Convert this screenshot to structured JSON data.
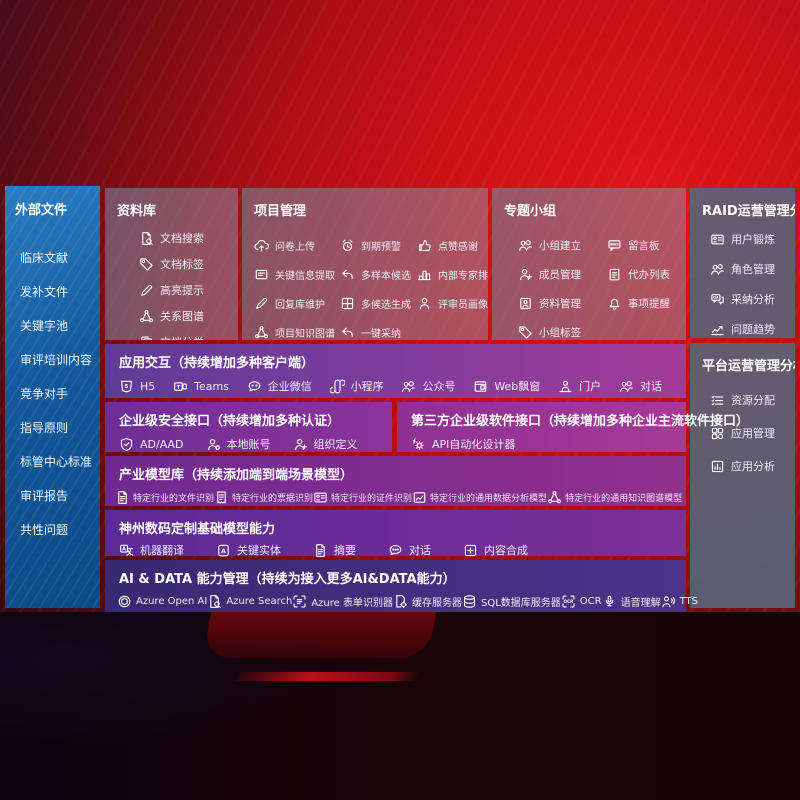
{
  "colors": {
    "background_red": "#c80f14",
    "background_dark": "#140409",
    "sidebar_blue": "#12589c",
    "panel_gray": "#76829b",
    "row_purple": "#7c3c9c",
    "row_magenta": "#a23b98",
    "row_indigo": "#3d2d78"
  },
  "sidebar": {
    "title": "外部文件",
    "items": [
      "临床文献",
      "发补文件",
      "关键字池",
      "审评培训内容",
      "竞争对手",
      "指导原则",
      "标管中心标准",
      "审评报告",
      "共性问题"
    ]
  },
  "panels": {
    "datalib": {
      "title": "资料库",
      "items": [
        {
          "icon": "doc-search",
          "label": "文档搜索"
        },
        {
          "icon": "tag",
          "label": "文档标签"
        },
        {
          "icon": "highlight-pen",
          "label": "高亮提示"
        },
        {
          "icon": "knowledge-graph",
          "label": "关系图谱"
        },
        {
          "icon": "doc-copy",
          "label": "文档分类"
        }
      ]
    },
    "project": {
      "title": "项目管理",
      "items": [
        {
          "icon": "cloud-upload",
          "label": "问卷上传"
        },
        {
          "icon": "alarm",
          "label": "到期预警"
        },
        {
          "icon": "thumbs-up",
          "label": "点赞感谢"
        },
        {
          "icon": "doc-extract",
          "label": "关键信息提取"
        },
        {
          "icon": "reply-arrow",
          "label": "多样本候选"
        },
        {
          "icon": "ranking",
          "label": "内部专家排名"
        },
        {
          "icon": "edit-pen",
          "label": "回复库维护"
        },
        {
          "icon": "multi-generate",
          "label": "多候选生成"
        },
        {
          "icon": "person",
          "label": "评审员画像"
        },
        {
          "icon": "knowledge-graph",
          "label": "项目知识图谱"
        },
        {
          "icon": "adopt-arrow",
          "label": "一键采纳"
        }
      ]
    },
    "groups": {
      "title": "专题小组",
      "items": [
        {
          "icon": "people",
          "label": "小组建立"
        },
        {
          "icon": "bbs-board",
          "label": "留言板"
        },
        {
          "icon": "person-plus",
          "label": "成员管理"
        },
        {
          "icon": "clipboard",
          "label": "代办列表"
        },
        {
          "icon": "album",
          "label": "资料管理"
        },
        {
          "icon": "bell",
          "label": "事项提醒"
        },
        {
          "icon": "tag",
          "label": "小组标签"
        }
      ]
    },
    "raid": {
      "title": "RAID运营管理分析",
      "items": [
        {
          "icon": "id-card",
          "label": "用户锻炼"
        },
        {
          "icon": "people",
          "label": "角色管理"
        },
        {
          "icon": "chat-analysis",
          "label": "采纳分析"
        },
        {
          "icon": "trend-chart",
          "label": "问题趋势"
        }
      ]
    },
    "platform": {
      "title": "平台运营管理分析",
      "items": [
        {
          "icon": "task-list",
          "label": "资源分配"
        },
        {
          "icon": "app-grid",
          "label": "应用管理"
        },
        {
          "icon": "report-chart",
          "label": "应用分析"
        }
      ]
    }
  },
  "rows": {
    "interaction": {
      "title": "应用交互（持续增加多种客户端）",
      "items": [
        {
          "icon": "h5",
          "label": "H5"
        },
        {
          "icon": "teams",
          "label": "Teams"
        },
        {
          "icon": "wechat-work",
          "label": "企业微信"
        },
        {
          "icon": "mini-program",
          "label": "小程序"
        },
        {
          "icon": "official-account",
          "label": "公众号"
        },
        {
          "icon": "web-window",
          "label": "Web飘窗"
        },
        {
          "icon": "portal",
          "label": "门户"
        },
        {
          "icon": "dialog",
          "label": "对话"
        }
      ]
    },
    "security": {
      "title": "企业级安全接口（持续增加多种认证）",
      "items": [
        {
          "icon": "shield",
          "label": "AD/AAD"
        },
        {
          "icon": "local-account",
          "label": "本地账号"
        },
        {
          "icon": "org-define",
          "label": "组织定义"
        }
      ]
    },
    "thirdparty": {
      "title": "第三方企业级软件接口（持续增加多种企业主流软件接口）",
      "items": [
        {
          "icon": "api-gear",
          "label": "API自动化设计器"
        }
      ]
    },
    "industry": {
      "title": "产业模型库（持续添加端到端场景模型）",
      "items": [
        {
          "icon": "doc-recognize",
          "label": "特定行业的文件识别"
        },
        {
          "icon": "receipt",
          "label": "特定行业的票据识别"
        },
        {
          "icon": "id-card",
          "label": "特定行业的证件识别"
        },
        {
          "icon": "image-chart",
          "label": "特定行业的通用数据分析模型"
        },
        {
          "icon": "knowledge-graph",
          "label": "特定行业的通用知识图谱模型"
        }
      ]
    },
    "base": {
      "title": "神州数码定制基础模型能力",
      "items": [
        {
          "icon": "translate",
          "label": "机器翻译"
        },
        {
          "icon": "entity",
          "label": "关键实体"
        },
        {
          "icon": "summary-doc",
          "label": "摘要"
        },
        {
          "icon": "chat",
          "label": "对话"
        },
        {
          "icon": "compose",
          "label": "内容合成"
        }
      ]
    },
    "aidata": {
      "title": "AI & DATA 能力管理（持续为接入更多AI&DATA能力）",
      "items": [
        {
          "icon": "openai",
          "label": "Azure Open AI"
        },
        {
          "icon": "azure-search",
          "label": "Azure Search"
        },
        {
          "icon": "form-recognizer",
          "label": "Azure 表单识别器"
        },
        {
          "icon": "cache-server",
          "label": "缓存服务器"
        },
        {
          "icon": "sql-database",
          "label": "SQL数据库服务器"
        },
        {
          "icon": "ocr",
          "label": "OCR"
        },
        {
          "icon": "speech",
          "label": "语音理解"
        },
        {
          "icon": "tts",
          "label": "TTS"
        }
      ]
    }
  }
}
